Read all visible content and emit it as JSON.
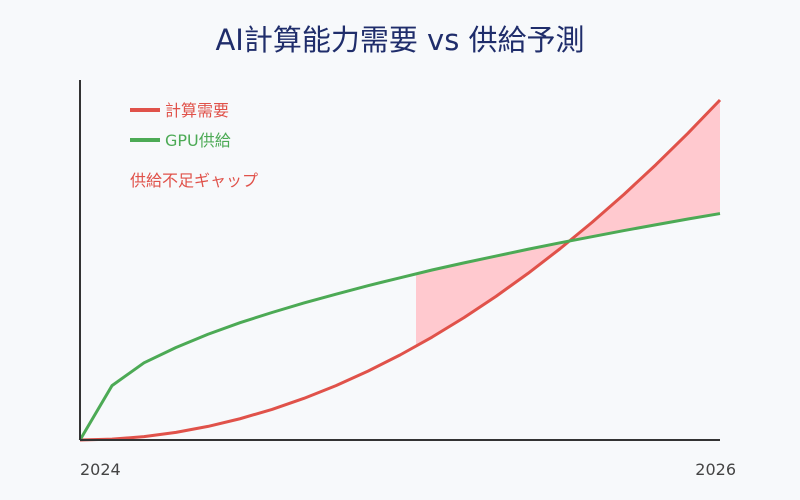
{
  "chart_data": {
    "type": "line",
    "title": "AI計算能力需要 vs 供給予測",
    "xlabel": "",
    "ylabel": "",
    "x_range": [
      0,
      1
    ],
    "y_range": [
      0,
      1
    ],
    "x_tick_labels": [
      {
        "x": 0,
        "label": "2024"
      },
      {
        "x": 1,
        "label": "2026"
      }
    ],
    "grid": false,
    "legend_position": "top-left",
    "series": [
      {
        "name": "計算需要",
        "color": "#e0524a",
        "x": [
          0,
          0.05,
          0.1,
          0.15,
          0.2,
          0.25,
          0.3,
          0.35,
          0.4,
          0.45,
          0.5,
          0.55,
          0.6,
          0.65,
          0.7,
          0.75,
          0.8,
          0.85,
          0.9,
          0.95,
          1.0
        ],
        "y": [
          0.0,
          0.0025,
          0.01,
          0.0225,
          0.04,
          0.0625,
          0.09,
          0.1225,
          0.16,
          0.2025,
          0.25,
          0.3025,
          0.36,
          0.4225,
          0.49,
          0.5625,
          0.64,
          0.7225,
          0.81,
          0.9025,
          1.0
        ]
      },
      {
        "name": "GPU供給",
        "color": "#4caa55",
        "x": [
          0,
          0.05,
          0.1,
          0.15,
          0.2,
          0.25,
          0.3,
          0.35,
          0.4,
          0.45,
          0.5,
          0.55,
          0.6,
          0.65,
          0.7,
          0.75,
          0.8,
          0.85,
          0.9,
          0.95,
          1.0
        ],
        "y": [
          0.0,
          0.16,
          0.227,
          0.272,
          0.311,
          0.345,
          0.375,
          0.403,
          0.429,
          0.454,
          0.477,
          0.5,
          0.521,
          0.541,
          0.561,
          0.58,
          0.598,
          0.616,
          0.633,
          0.65,
          0.666
        ]
      }
    ],
    "shaded_region": {
      "label": "供給不足ギャップ",
      "color": "#ffc9cf",
      "label_color": "#e0524a",
      "between": [
        "計算需要",
        "GPU供給"
      ],
      "x_from": 0.525
    }
  }
}
